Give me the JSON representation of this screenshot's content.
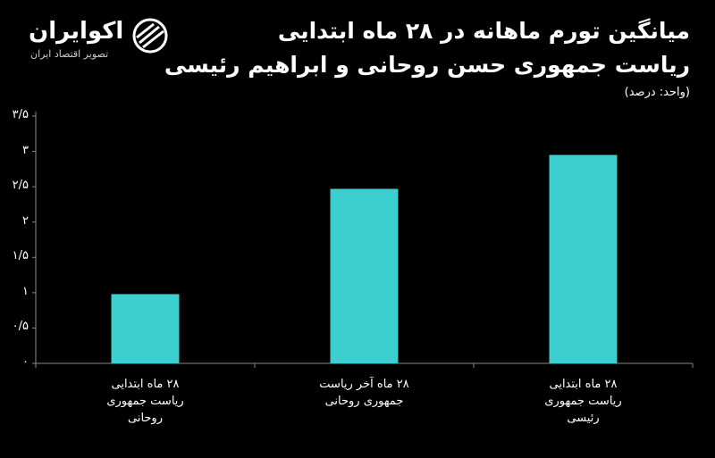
{
  "brand": {
    "name": "اکوایران",
    "tagline": "تصویر اقتصاد ایران"
  },
  "chart_data": {
    "type": "bar",
    "title": "میانگین تورم ماهانه در ۲۸ ماه ابتدایی",
    "subtitle": "ریاست جمهوری حسن روحانی و ابراهیم رئیسی",
    "unit_label": "(واحد: درصد)",
    "categories": [
      "۲۸ ماه ابتدایی ریاست جمهوری روحانی",
      "۲۸ ماه آخر ریاست جمهوری روحانی",
      "۲۸ ماه ابتدایی ریاست جمهوری رئیسی"
    ],
    "values": [
      0.98,
      2.47,
      2.95
    ],
    "color": "#3dcfcf",
    "ylim": [
      0,
      3.5
    ],
    "yticks": [
      {
        "value": 0,
        "label": "۰"
      },
      {
        "value": 0.5,
        "label": "۰/۵"
      },
      {
        "value": 1,
        "label": "۱"
      },
      {
        "value": 1.5,
        "label": "۱/۵"
      },
      {
        "value": 2,
        "label": "۲"
      },
      {
        "value": 2.5,
        "label": "۲/۵"
      },
      {
        "value": 3,
        "label": "۳"
      },
      {
        "value": 3.5,
        "label": "۳/۵"
      }
    ],
    "grid": false
  }
}
